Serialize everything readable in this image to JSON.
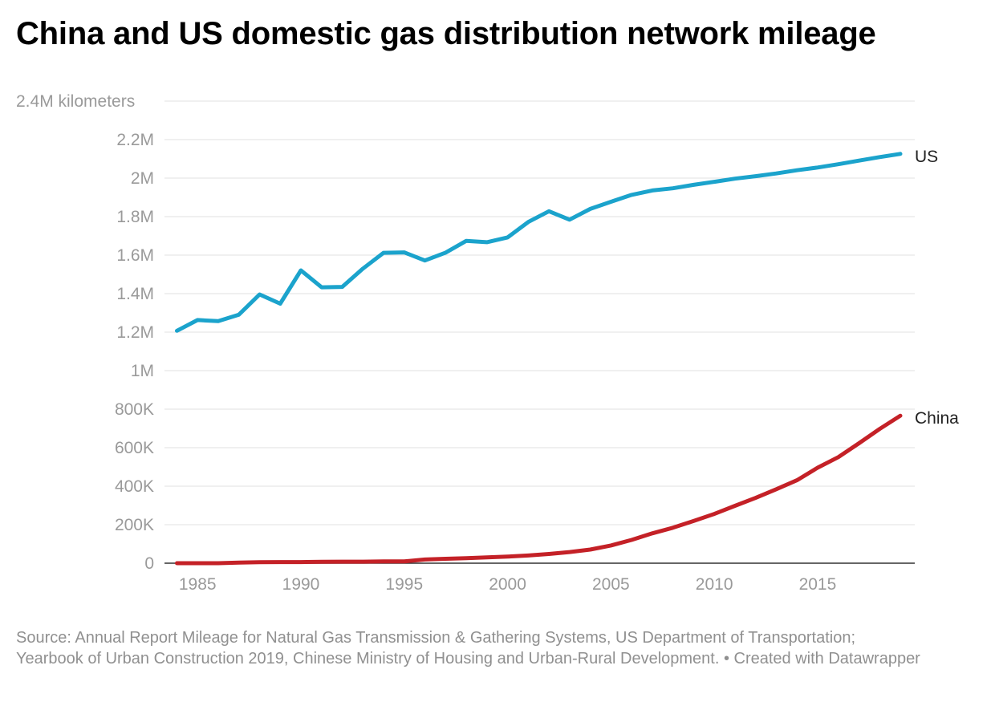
{
  "title": "China and US domestic gas distribution network mileage",
  "source_text": "Source: Annual Report Mileage for Natural Gas Transmission & Gathering Systems, US Department of Transportation; Yearbook of Urban Construction 2019, Chinese Ministry of Housing and Urban-Rural Development. • Created with Datawrapper",
  "chart_data": {
    "type": "line",
    "title": "China and US domestic gas distribution network mileage",
    "xlabel": "",
    "ylabel": "",
    "xlim": [
      1984,
      2019
    ],
    "ylim": [
      0,
      2400000
    ],
    "grid": true,
    "legend": "inline labels at line ends",
    "y_ticks": [
      {
        "value": 0,
        "label": "0"
      },
      {
        "value": 200000,
        "label": "200K"
      },
      {
        "value": 400000,
        "label": "400K"
      },
      {
        "value": 600000,
        "label": "600K"
      },
      {
        "value": 800000,
        "label": "800K"
      },
      {
        "value": 1000000,
        "label": "1M"
      },
      {
        "value": 1200000,
        "label": "1.2M"
      },
      {
        "value": 1400000,
        "label": "1.4M"
      },
      {
        "value": 1600000,
        "label": "1.6M"
      },
      {
        "value": 1800000,
        "label": "1.8M"
      },
      {
        "value": 2000000,
        "label": "2M"
      },
      {
        "value": 2200000,
        "label": "2.2M"
      },
      {
        "value": 2400000,
        "label": "2.4M kilometers"
      }
    ],
    "x_ticks": [
      1985,
      1990,
      1995,
      2000,
      2005,
      2010,
      2015
    ],
    "x": [
      1984,
      1985,
      1986,
      1987,
      1988,
      1989,
      1990,
      1991,
      1992,
      1993,
      1994,
      1995,
      1996,
      1997,
      1998,
      1999,
      2000,
      2001,
      2002,
      2003,
      2004,
      2005,
      2006,
      2007,
      2008,
      2009,
      2010,
      2011,
      2012,
      2013,
      2014,
      2015,
      2016,
      2017,
      2018,
      2019
    ],
    "series": [
      {
        "name": "US",
        "color": "#1ba3cc",
        "values": [
          1207000,
          1263000,
          1257000,
          1291000,
          1396000,
          1348000,
          1521000,
          1433000,
          1435000,
          1530000,
          1612000,
          1614000,
          1572000,
          1613000,
          1674000,
          1667000,
          1692000,
          1772000,
          1828000,
          1784000,
          1840000,
          1877000,
          1913000,
          1936000,
          1947000,
          1965000,
          1981000,
          1997000,
          2010000,
          2024000,
          2041000,
          2055000,
          2072000,
          2091000,
          2109000,
          2126000
        ]
      },
      {
        "name": "China",
        "color": "#c42127",
        "values": [
          0,
          0,
          0,
          3000,
          5000,
          6000,
          6000,
          7000,
          8000,
          8000,
          9000,
          9000,
          19000,
          23000,
          26000,
          30000,
          34000,
          40000,
          48000,
          58000,
          71000,
          92000,
          121000,
          155000,
          184000,
          219000,
          256000,
          298000,
          339000,
          384000,
          431000,
          496000,
          551000,
          623000,
          697000,
          766000
        ]
      }
    ]
  }
}
